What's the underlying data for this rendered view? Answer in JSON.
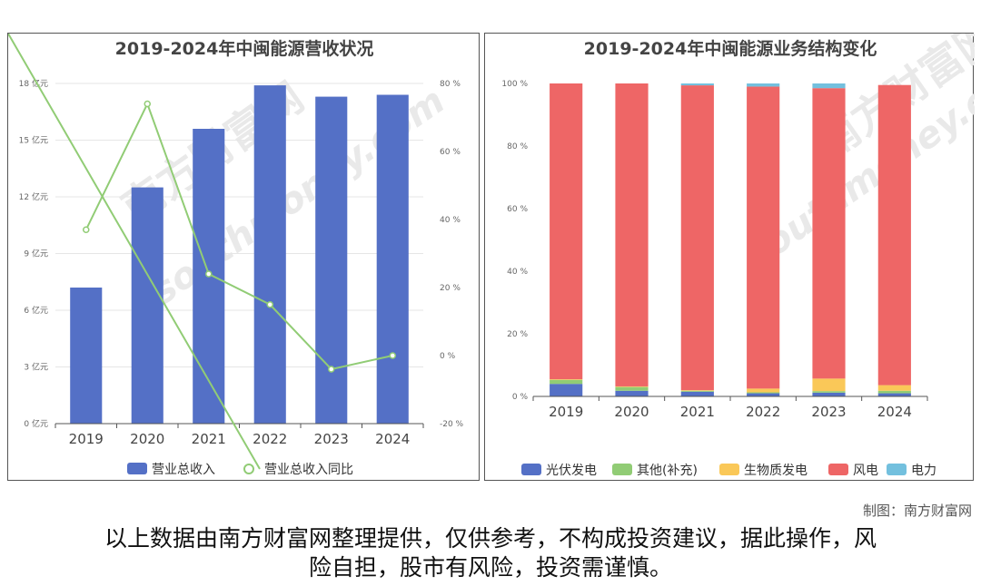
{
  "charts": {
    "left": {
      "title": "2019-2024年中闽能源营收状况",
      "series_names": [
        "营业总收入",
        "营业总收入同比"
      ]
    },
    "right": {
      "title": "2019-2024年中闽能源业务结构变化",
      "series_names": [
        "光伏发电",
        "其他(补充)",
        "生物质发电",
        "风电",
        "电力"
      ]
    }
  },
  "chart_data": [
    {
      "type": "bar",
      "title": "2019-2024年中闽能源营收状况",
      "categories": [
        "2019",
        "2020",
        "2021",
        "2022",
        "2023",
        "2024"
      ],
      "y_left": {
        "ticks": [
          "0 亿元",
          "3 亿元",
          "6 亿元",
          "9 亿元",
          "12 亿元",
          "15 亿元",
          "18 亿元"
        ],
        "ylim": [
          0,
          18
        ]
      },
      "y_right": {
        "ticks": [
          "-20 %",
          "0 %",
          "20 %",
          "40 %",
          "60 %",
          "80 %"
        ],
        "ylim": [
          -20,
          80
        ]
      },
      "series": [
        {
          "name": "营业总收入",
          "type": "bar",
          "axis": "left",
          "color": "#5470c6",
          "values": [
            7.2,
            12.5,
            15.6,
            17.9,
            17.3,
            17.4
          ]
        },
        {
          "name": "营业总收入同比",
          "type": "line",
          "axis": "right",
          "color": "#91cc75",
          "values": [
            37,
            74,
            24,
            15,
            -4,
            0
          ]
        }
      ],
      "legend": "bottom",
      "grid": true
    },
    {
      "type": "bar",
      "stacked": true,
      "title": "2019-2024年中闽能源业务结构变化",
      "categories": [
        "2019",
        "2020",
        "2021",
        "2022",
        "2023",
        "2024"
      ],
      "y": {
        "ticks": [
          "0 %",
          "20 %",
          "40 %",
          "60 %",
          "80 %",
          "100 %"
        ],
        "ylim": [
          0,
          100
        ]
      },
      "series": [
        {
          "name": "光伏发电",
          "color": "#5470c6",
          "values": [
            4.0,
            1.8,
            1.5,
            1.0,
            1.2,
            1.0
          ]
        },
        {
          "name": "其他(补充)",
          "color": "#91cc75",
          "values": [
            1.3,
            1.2,
            0.3,
            0.3,
            0.5,
            0.8
          ]
        },
        {
          "name": "生物质发电",
          "color": "#fac858",
          "values": [
            0.2,
            0.2,
            0.2,
            1.2,
            4.0,
            1.8
          ]
        },
        {
          "name": "风电",
          "color": "#ee6666",
          "values": [
            94.5,
            96.8,
            97.4,
            96.5,
            92.8,
            95.9
          ]
        },
        {
          "name": "电力",
          "color": "#73c0de",
          "values": [
            0,
            0,
            0.6,
            1.0,
            1.5,
            0
          ]
        }
      ],
      "legend": "bottom",
      "grid": false
    }
  ],
  "footer": {
    "credit": "制图：南方财富网",
    "disclaimer_line1": "以上数据由南方财富网整理提供，仅供参考，不构成投资建议，据此操作，风",
    "disclaimer_line2": "险自担，股市有风险，投资需谨慎。"
  },
  "watermark": {
    "text_cn": "南方财富网",
    "text_en": "southmoney.com"
  }
}
